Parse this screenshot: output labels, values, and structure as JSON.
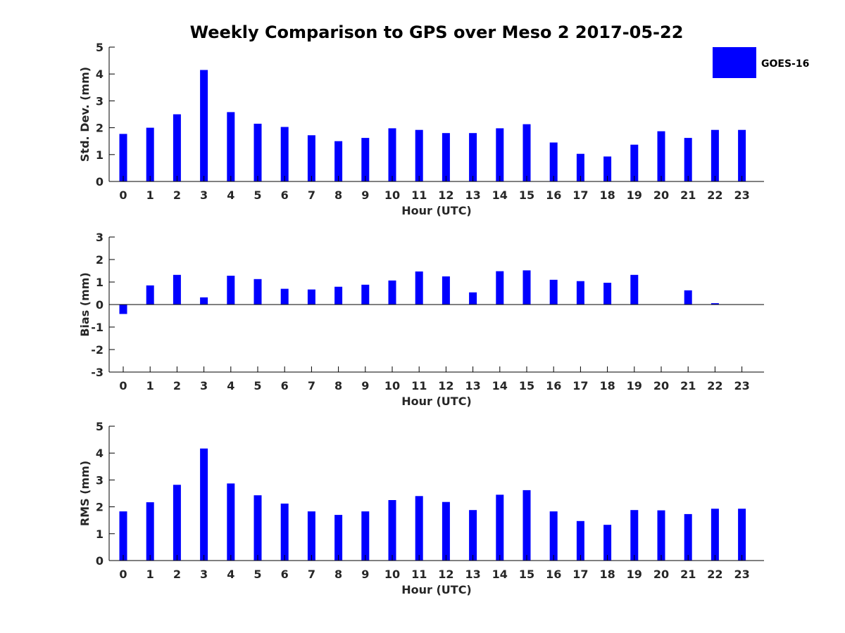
{
  "chart_data": [
    {
      "type": "bar",
      "title": "Weekly Comparison to GPS over Meso 2 2017-05-22",
      "xlabel": "Hour (UTC)",
      "ylabel": "Std. Dev. (mm)",
      "ylim": [
        0,
        5
      ],
      "yticks": [
        0,
        1,
        2,
        3,
        4,
        5
      ],
      "categories": [
        "0",
        "1",
        "2",
        "3",
        "4",
        "5",
        "6",
        "7",
        "8",
        "9",
        "10",
        "11",
        "12",
        "13",
        "14",
        "15",
        "16",
        "17",
        "18",
        "19",
        "20",
        "21",
        "22",
        "23"
      ],
      "series": [
        {
          "name": "GOES-16",
          "color": "#0000ff",
          "values": [
            1.77,
            2.0,
            2.5,
            4.15,
            2.58,
            2.15,
            2.03,
            1.72,
            1.5,
            1.62,
            1.98,
            1.92,
            1.8,
            1.8,
            1.98,
            2.13,
            1.45,
            1.03,
            0.93,
            1.37,
            1.87,
            1.62,
            1.92,
            1.92
          ]
        }
      ]
    },
    {
      "type": "bar",
      "title": "",
      "xlabel": "Hour (UTC)",
      "ylabel": "Bias (mm)",
      "ylim": [
        -3,
        3
      ],
      "yticks": [
        -3,
        -2,
        -1,
        0,
        1,
        2,
        3
      ],
      "categories": [
        "0",
        "1",
        "2",
        "3",
        "4",
        "5",
        "6",
        "7",
        "8",
        "9",
        "10",
        "11",
        "12",
        "13",
        "14",
        "15",
        "16",
        "17",
        "18",
        "19",
        "20",
        "21",
        "22",
        "23"
      ],
      "series": [
        {
          "name": "GOES-16",
          "color": "#0000ff",
          "values": [
            -0.42,
            0.85,
            1.32,
            0.32,
            1.28,
            1.13,
            0.7,
            0.67,
            0.79,
            0.88,
            1.07,
            1.47,
            1.25,
            0.54,
            1.48,
            1.52,
            1.1,
            1.04,
            0.97,
            1.32,
            0.0,
            0.63,
            0.06,
            0.0
          ]
        }
      ]
    },
    {
      "type": "bar",
      "title": "",
      "xlabel": "Hour (UTC)",
      "ylabel": "RMS (mm)",
      "ylim": [
        0,
        5
      ],
      "yticks": [
        0,
        1,
        2,
        3,
        4,
        5
      ],
      "categories": [
        "0",
        "1",
        "2",
        "3",
        "4",
        "5",
        "6",
        "7",
        "8",
        "9",
        "10",
        "11",
        "12",
        "13",
        "14",
        "15",
        "16",
        "17",
        "18",
        "19",
        "20",
        "21",
        "22",
        "23"
      ],
      "series": [
        {
          "name": "GOES-16",
          "color": "#0000ff",
          "values": [
            1.83,
            2.17,
            2.82,
            4.17,
            2.87,
            2.43,
            2.12,
            1.83,
            1.7,
            1.83,
            2.25,
            2.4,
            2.18,
            1.88,
            2.45,
            2.62,
            1.83,
            1.47,
            1.33,
            1.88,
            1.87,
            1.73,
            1.93,
            1.93
          ]
        }
      ]
    }
  ],
  "legend": {
    "label": "GOES-16",
    "color": "#0000ff",
    "position": "top-right"
  }
}
